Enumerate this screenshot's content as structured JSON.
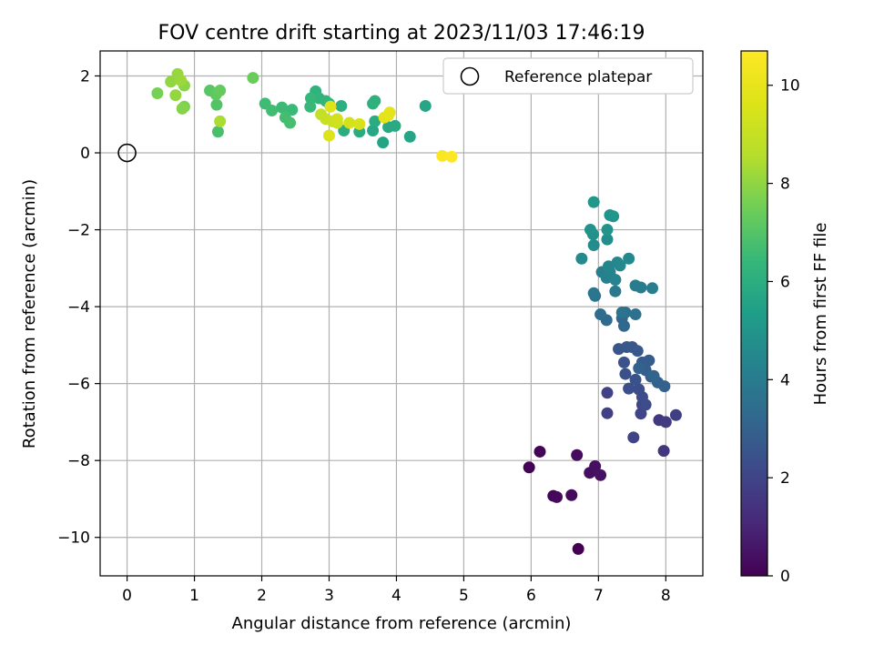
{
  "chart_data": {
    "type": "scatter",
    "title": "FOV centre drift starting at 2023/11/03 17:46:19",
    "xlabel": "Angular distance from reference (arcmin)",
    "ylabel": "Rotation from reference (arcmin)",
    "xlim": [
      -0.4,
      8.55
    ],
    "ylim": [
      -11.0,
      2.65
    ],
    "xticks": [
      0,
      1,
      2,
      3,
      4,
      5,
      6,
      7,
      8
    ],
    "yticks": [
      2,
      0,
      -2,
      -4,
      -6,
      -8,
      -10
    ],
    "xtick_labels": [
      "0",
      "1",
      "2",
      "3",
      "4",
      "5",
      "6",
      "7",
      "8"
    ],
    "ytick_labels": [
      "2",
      "0",
      "−2",
      "−4",
      "−6",
      "−8",
      "−10"
    ],
    "grid": true,
    "legend": {
      "position": "top-right",
      "entries": [
        {
          "label": "Reference platepar",
          "marker": "open-circle"
        }
      ]
    },
    "reference_point": {
      "x": 0,
      "y": 0
    },
    "colorbar": {
      "label": "Hours from first FF file",
      "colormap": "viridis",
      "range": [
        0,
        10.7
      ],
      "ticks": [
        0,
        2,
        4,
        6,
        8,
        10
      ],
      "tick_labels": [
        "0",
        "2",
        "4",
        "6",
        "8",
        "10"
      ]
    },
    "series": [
      {
        "points": [
          [
            6.7,
            -10.3,
            0.0
          ],
          [
            5.97,
            -8.18,
            0.05
          ],
          [
            6.13,
            -7.77,
            0.1
          ],
          [
            6.33,
            -8.92,
            0.15
          ],
          [
            6.38,
            -8.95,
            0.2
          ],
          [
            6.6,
            -8.9,
            0.25
          ],
          [
            6.68,
            -7.86,
            0.3
          ],
          [
            6.87,
            -8.32,
            0.35
          ],
          [
            6.95,
            -8.15,
            0.4
          ],
          [
            7.03,
            -8.38,
            0.45
          ],
          [
            7.97,
            -7.75,
            1.5
          ],
          [
            7.9,
            -6.95,
            1.6
          ],
          [
            8.0,
            -7.0,
            1.7
          ],
          [
            8.15,
            -6.82,
            1.8
          ],
          [
            7.13,
            -6.77,
            1.85
          ],
          [
            7.13,
            -6.24,
            1.9
          ],
          [
            7.52,
            -7.4,
            1.95
          ],
          [
            7.63,
            -6.78,
            2.0
          ],
          [
            7.65,
            -6.55,
            2.1
          ],
          [
            7.7,
            -6.55,
            2.2
          ],
          [
            7.65,
            -6.35,
            2.25
          ],
          [
            7.6,
            -6.15,
            2.3
          ],
          [
            7.45,
            -6.13,
            2.35
          ],
          [
            7.4,
            -5.75,
            2.4
          ],
          [
            7.55,
            -5.9,
            2.45
          ],
          [
            7.38,
            -5.45,
            2.5
          ],
          [
            7.5,
            -5.05,
            2.55
          ],
          [
            7.3,
            -5.1,
            2.6
          ],
          [
            7.42,
            -5.05,
            2.65
          ],
          [
            7.58,
            -5.15,
            2.7
          ],
          [
            7.65,
            -5.45,
            2.75
          ],
          [
            7.75,
            -5.4,
            2.8
          ],
          [
            7.7,
            -5.65,
            2.85
          ],
          [
            7.78,
            -5.82,
            2.9
          ],
          [
            7.88,
            -5.97,
            2.95
          ],
          [
            7.98,
            -6.07,
            3.0
          ],
          [
            7.6,
            -5.6,
            3.05
          ],
          [
            7.82,
            -5.8,
            3.1
          ],
          [
            7.35,
            -4.3,
            3.15
          ],
          [
            7.38,
            -4.5,
            3.2
          ],
          [
            7.12,
            -4.35,
            3.3
          ],
          [
            7.03,
            -4.2,
            3.4
          ],
          [
            7.4,
            -4.15,
            3.5
          ],
          [
            7.55,
            -4.2,
            3.6
          ],
          [
            7.35,
            -4.15,
            3.65
          ],
          [
            6.95,
            -3.72,
            3.7
          ],
          [
            6.93,
            -3.65,
            3.8
          ],
          [
            7.25,
            -3.6,
            3.9
          ],
          [
            7.55,
            -3.45,
            4.0
          ],
          [
            7.63,
            -3.5,
            4.05
          ],
          [
            7.8,
            -3.52,
            4.1
          ],
          [
            7.05,
            -3.1,
            4.15
          ],
          [
            7.12,
            -3.25,
            4.2
          ],
          [
            7.17,
            -3.1,
            4.3
          ],
          [
            7.25,
            -3.3,
            4.35
          ],
          [
            7.15,
            -2.95,
            4.4
          ],
          [
            7.28,
            -2.85,
            4.45
          ],
          [
            7.32,
            -2.93,
            4.5
          ],
          [
            7.45,
            -2.75,
            4.55
          ],
          [
            6.75,
            -2.75,
            4.6
          ],
          [
            6.93,
            -2.4,
            4.65
          ],
          [
            7.13,
            -2.25,
            4.7
          ],
          [
            6.92,
            -2.12,
            4.8
          ],
          [
            6.88,
            -2.0,
            4.9
          ],
          [
            7.13,
            -2.0,
            4.95
          ],
          [
            7.17,
            -1.62,
            5.0
          ],
          [
            7.22,
            -1.65,
            5.05
          ],
          [
            6.93,
            -1.28,
            5.1
          ],
          [
            3.8,
            0.27,
            5.6
          ],
          [
            4.2,
            0.42,
            5.65
          ],
          [
            4.43,
            1.22,
            5.7
          ],
          [
            3.65,
            0.58,
            5.75
          ],
          [
            3.88,
            0.67,
            5.8
          ],
          [
            3.98,
            0.7,
            5.85
          ],
          [
            3.68,
            0.82,
            5.9
          ],
          [
            3.45,
            0.55,
            5.95
          ],
          [
            3.22,
            0.58,
            6.0
          ],
          [
            3.18,
            1.22,
            6.05
          ],
          [
            3.65,
            1.28,
            6.1
          ],
          [
            3.68,
            1.35,
            6.15
          ],
          [
            2.8,
            1.6,
            6.2
          ],
          [
            2.85,
            1.42,
            6.25
          ],
          [
            2.95,
            1.35,
            6.3
          ],
          [
            3.0,
            1.28,
            6.35
          ],
          [
            2.73,
            1.42,
            6.4
          ],
          [
            2.72,
            1.2,
            6.45
          ],
          [
            2.45,
            1.12,
            6.5
          ],
          [
            2.3,
            1.18,
            6.55
          ],
          [
            2.05,
            1.28,
            6.6
          ],
          [
            2.15,
            1.1,
            6.65
          ],
          [
            2.35,
            0.92,
            6.7
          ],
          [
            2.42,
            0.78,
            6.75
          ],
          [
            1.35,
            0.55,
            6.8
          ],
          [
            1.33,
            1.25,
            7.0
          ],
          [
            1.23,
            1.62,
            7.1
          ],
          [
            1.32,
            1.52,
            7.2
          ],
          [
            1.38,
            1.62,
            7.3
          ],
          [
            1.87,
            1.95,
            7.4
          ],
          [
            0.45,
            1.55,
            7.6
          ],
          [
            0.85,
            1.2,
            7.7
          ],
          [
            0.82,
            1.15,
            7.8
          ],
          [
            0.85,
            1.75,
            7.9
          ],
          [
            0.65,
            1.85,
            8.0
          ],
          [
            0.72,
            1.5,
            8.05
          ],
          [
            0.75,
            2.05,
            8.1
          ],
          [
            0.8,
            1.88,
            8.15
          ],
          [
            1.38,
            0.82,
            8.4
          ],
          [
            2.88,
            1.0,
            8.9
          ],
          [
            2.95,
            0.88,
            9.0
          ],
          [
            3.05,
            0.82,
            9.1
          ],
          [
            3.12,
            0.78,
            9.2
          ],
          [
            3.12,
            0.88,
            9.3
          ],
          [
            3.3,
            0.78,
            9.4
          ],
          [
            3.45,
            0.75,
            9.5
          ],
          [
            3.0,
            0.45,
            9.6
          ],
          [
            3.02,
            1.2,
            9.7
          ],
          [
            3.88,
            0.98,
            9.75
          ],
          [
            3.9,
            1.05,
            9.85
          ],
          [
            3.82,
            0.92,
            9.9
          ],
          [
            4.68,
            -0.08,
            10.6
          ],
          [
            4.82,
            -0.1,
            10.7
          ]
        ]
      }
    ]
  }
}
